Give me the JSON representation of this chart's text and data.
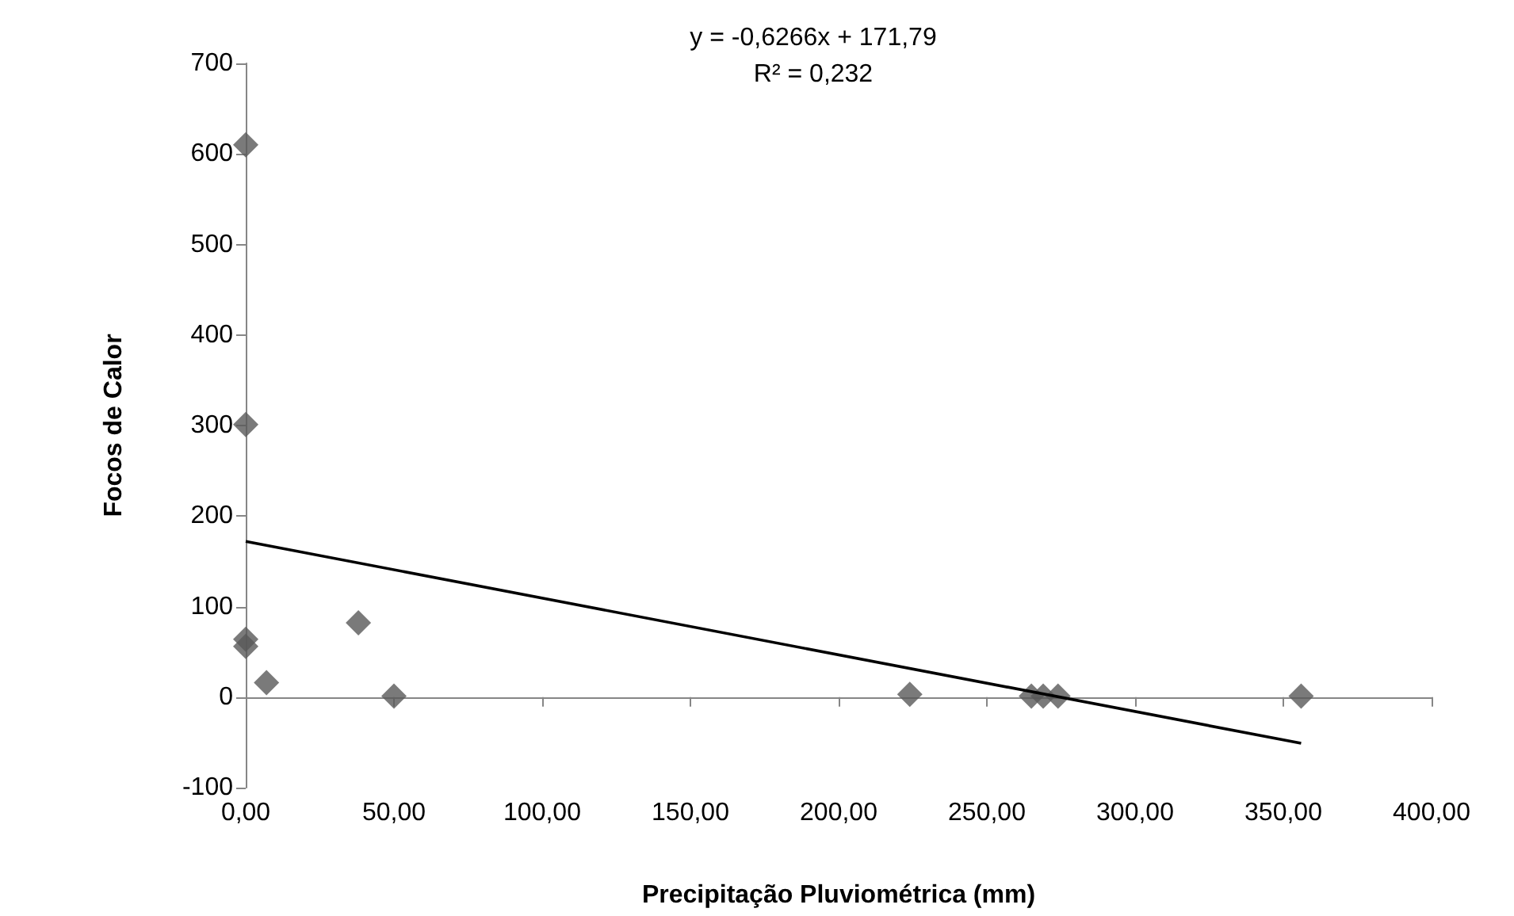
{
  "chart_data": {
    "type": "scatter",
    "xlabel": "Precipitação Pluviométrica (mm)",
    "ylabel": "Focos de Calor",
    "annotations": [
      "y = -0,6266x + 171,79",
      "R² = 0,232"
    ],
    "series": [
      {
        "color": "#595959",
        "marker": "diamond",
        "x": [
          0,
          0,
          0,
          0,
          7,
          38,
          50,
          224,
          265,
          269,
          274,
          356
        ],
        "values": [
          610,
          301,
          64,
          56,
          16,
          82,
          1,
          3,
          1,
          1,
          1,
          1
        ]
      },
      {
        "type": "line",
        "color": "#000000",
        "marker": "none",
        "line_style": "solid",
        "x": [
          0,
          356
        ],
        "values": [
          172,
          -51
        ]
      }
    ],
    "xlim": [
      0,
      400
    ],
    "xticks": [
      {
        "value": 0,
        "label": "0,00"
      },
      {
        "value": 50,
        "label": "50,00"
      },
      {
        "value": 100,
        "label": "100,00"
      },
      {
        "value": 150,
        "label": "150,00"
      },
      {
        "value": 200,
        "label": "200,00"
      },
      {
        "value": 250,
        "label": "250,00"
      },
      {
        "value": 300,
        "label": "300,00"
      },
      {
        "value": 350,
        "label": "350,00"
      },
      {
        "value": 400,
        "label": "400,00"
      }
    ],
    "ylim": [
      -100,
      700
    ],
    "yticks": [
      -100,
      0,
      100,
      200,
      300,
      400,
      500,
      600,
      700
    ]
  }
}
